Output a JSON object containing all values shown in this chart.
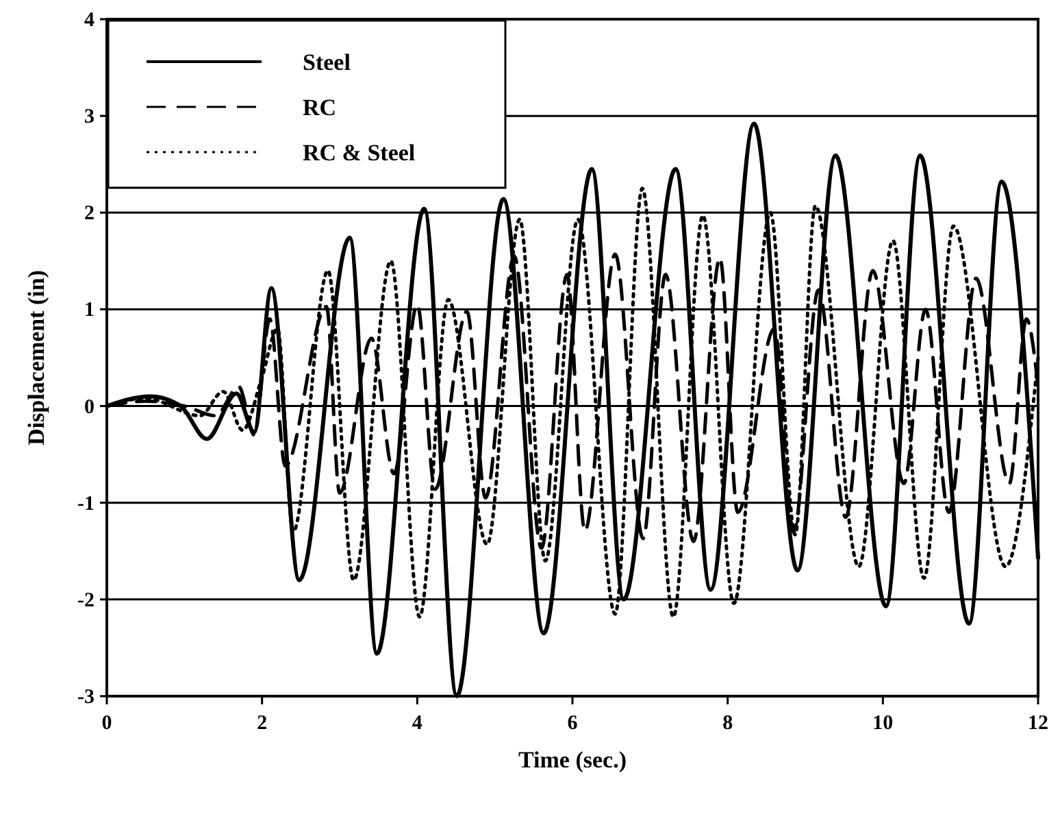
{
  "chart_data": {
    "type": "line",
    "xlabel": "Time  (sec.)",
    "ylabel": "Displacement  (in)",
    "xlim": [
      0,
      12
    ],
    "ylim": [
      -3,
      4
    ],
    "xticks": [
      0,
      2,
      4,
      6,
      8,
      10,
      12
    ],
    "yticks": [
      -3,
      -2,
      -1,
      0,
      1,
      2,
      3,
      4
    ],
    "grid": "y",
    "legend": "top left",
    "series": [
      {
        "name": "Steel",
        "color": "#000000",
        "line_style": "solid",
        "x": [
          0,
          0.56,
          0.95,
          1.29,
          1.67,
          1.9,
          2.12,
          2.48,
          3.13,
          3.48,
          4.09,
          4.51,
          5.11,
          5.63,
          6.25,
          6.66,
          7.33,
          7.78,
          8.34,
          8.9,
          9.39,
          10.04,
          10.48,
          11.11,
          11.53,
          12
        ],
        "values": [
          0,
          0.1,
          0,
          -0.34,
          0.13,
          -0.27,
          1.22,
          -1.8,
          1.74,
          -2.56,
          2.04,
          -3.0,
          2.14,
          -2.35,
          2.45,
          -2.0,
          2.45,
          -1.9,
          2.92,
          -1.7,
          2.59,
          -2.07,
          2.59,
          -2.25,
          2.32,
          -1.57
        ]
      },
      {
        "name": "RC",
        "color": "#000000",
        "line_style": "dashed",
        "x": [
          0,
          0.5,
          1.0,
          1.4,
          1.7,
          1.9,
          2.1,
          2.3,
          2.83,
          3.0,
          3.41,
          3.7,
          4.0,
          4.23,
          4.64,
          4.88,
          5.25,
          5.6,
          5.93,
          6.16,
          6.55,
          6.91,
          7.2,
          7.56,
          7.9,
          8.13,
          8.6,
          8.85,
          9.17,
          9.52,
          9.87,
          10.27,
          10.55,
          10.85,
          11.2,
          11.63,
          11.85,
          12
        ],
        "values": [
          0,
          0.05,
          0,
          -0.1,
          0.2,
          -0.3,
          0.9,
          -0.62,
          1.03,
          -0.9,
          0.7,
          -0.7,
          1.05,
          -0.86,
          0.98,
          -0.95,
          1.55,
          -1.47,
          1.36,
          -1.29,
          1.57,
          -1.37,
          1.36,
          -1.4,
          1.53,
          -1.1,
          0.8,
          -1.3,
          1.2,
          -1.15,
          1.4,
          -0.8,
          1.0,
          -1.1,
          1.32,
          -0.8,
          0.9,
          0.2
        ]
      },
      {
        "name": "RC & Steel",
        "color": "#000000",
        "line_style": "dotted",
        "x": [
          0,
          0.5,
          1.2,
          1.5,
          1.75,
          2.0,
          2.2,
          2.4,
          2.85,
          3.18,
          3.66,
          4.03,
          4.4,
          4.9,
          5.32,
          5.65,
          6.07,
          6.55,
          6.9,
          7.3,
          7.68,
          8.08,
          8.55,
          8.87,
          9.13,
          9.69,
          10.13,
          10.53,
          10.91,
          11.58,
          12
        ],
        "values": [
          0,
          0.08,
          -0.1,
          0.15,
          -0.25,
          0.3,
          0.8,
          -1.3,
          1.4,
          -1.8,
          1.5,
          -2.18,
          1.1,
          -1.43,
          1.93,
          -1.6,
          1.93,
          -2.15,
          2.25,
          -2.18,
          1.97,
          -2.04,
          2.0,
          -1.33,
          2.07,
          -1.66,
          1.71,
          -1.78,
          1.86,
          -1.66,
          0.5
        ]
      }
    ]
  }
}
